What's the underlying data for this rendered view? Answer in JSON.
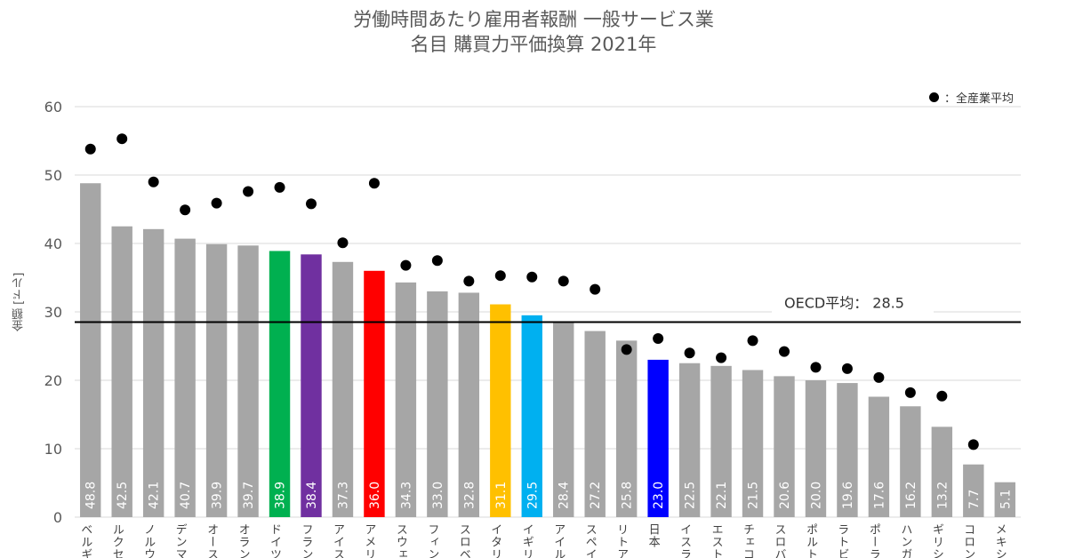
{
  "title_line1": "労働時間あたり雇用者報酬 一般サービス業",
  "title_line2": "名目 購買力平価換算 2021年",
  "legend_label": "：全産業平均",
  "oecd_label": "OECD平均： 28.5",
  "chart_data": {
    "type": "bar",
    "ylabel": "金額 [ドル]",
    "ylim": [
      0,
      60
    ],
    "yticks": [
      0,
      10,
      20,
      30,
      40,
      50,
      60
    ],
    "grid": true,
    "legend_position": "top-right",
    "oecd_average": 28.5,
    "categories": [
      "ベルギ",
      "ルクセ",
      "ノルウ",
      "デンマ",
      "オース",
      "オラン",
      "ドイツ",
      "フラン",
      "アイス",
      "アメリ",
      "スウェ",
      "フィン",
      "スロベ",
      "イタリ",
      "イギリ",
      "アイル",
      "スペイ",
      "リトア",
      "日本",
      "イスラ",
      "エスト",
      "チェコ",
      "スロバ",
      "ポルト",
      "ラトビ",
      "ポーラ",
      "ハンガ",
      "ギリシ",
      "コロン",
      "メキシ"
    ],
    "series": [
      {
        "values": [
          48.8,
          42.5,
          42.1,
          40.7,
          39.9,
          39.7,
          38.9,
          38.4,
          37.3,
          36.0,
          34.3,
          33.0,
          32.8,
          31.1,
          29.5,
          28.4,
          27.2,
          25.8,
          23.0,
          22.5,
          22.1,
          21.5,
          20.6,
          20.0,
          19.6,
          17.6,
          16.2,
          13.2,
          7.7,
          5.1
        ],
        "labels": [
          "48.8",
          "42.5",
          "42.1",
          "40.7",
          "39.9",
          "39.7",
          "38.9",
          "38.4",
          "37.3",
          "36.0",
          "34.3",
          "33.0",
          "32.8",
          "31.1",
          "29.5",
          "28.4",
          "27.2",
          "25.8",
          "23.0",
          "22.5",
          "22.1",
          "21.5",
          "20.6",
          "20.0",
          "19.6",
          "17.6",
          "16.2",
          "13.2",
          "7.7",
          "5.1"
        ]
      },
      {
        "name": "全産業平均",
        "values": [
          53.8,
          55.3,
          49.0,
          44.9,
          45.9,
          47.6,
          48.2,
          45.8,
          40.1,
          48.8,
          36.8,
          37.5,
          34.5,
          35.3,
          35.1,
          34.5,
          33.3,
          24.5,
          26.1,
          24.0,
          23.3,
          25.8,
          24.2,
          21.9,
          21.7,
          20.4,
          18.2,
          17.7,
          10.6,
          null
        ]
      }
    ],
    "bar_colors": [
      "#a6a6a6",
      "#a6a6a6",
      "#a6a6a6",
      "#a6a6a6",
      "#a6a6a6",
      "#a6a6a6",
      "#00b050",
      "#7030a0",
      "#a6a6a6",
      "#ff0000",
      "#a6a6a6",
      "#a6a6a6",
      "#a6a6a6",
      "#ffc000",
      "#00b0f0",
      "#a6a6a6",
      "#a6a6a6",
      "#a6a6a6",
      "#0000ff",
      "#a6a6a6",
      "#a6a6a6",
      "#a6a6a6",
      "#a6a6a6",
      "#a6a6a6",
      "#a6a6a6",
      "#a6a6a6",
      "#a6a6a6",
      "#a6a6a6",
      "#a6a6a6",
      "#a6a6a6"
    ],
    "colors": {
      "grid": "#d9d9d9",
      "axis_text": "#595959",
      "average_line": "#000000",
      "dot": "#000000",
      "bar_label": "#ffffff"
    }
  }
}
